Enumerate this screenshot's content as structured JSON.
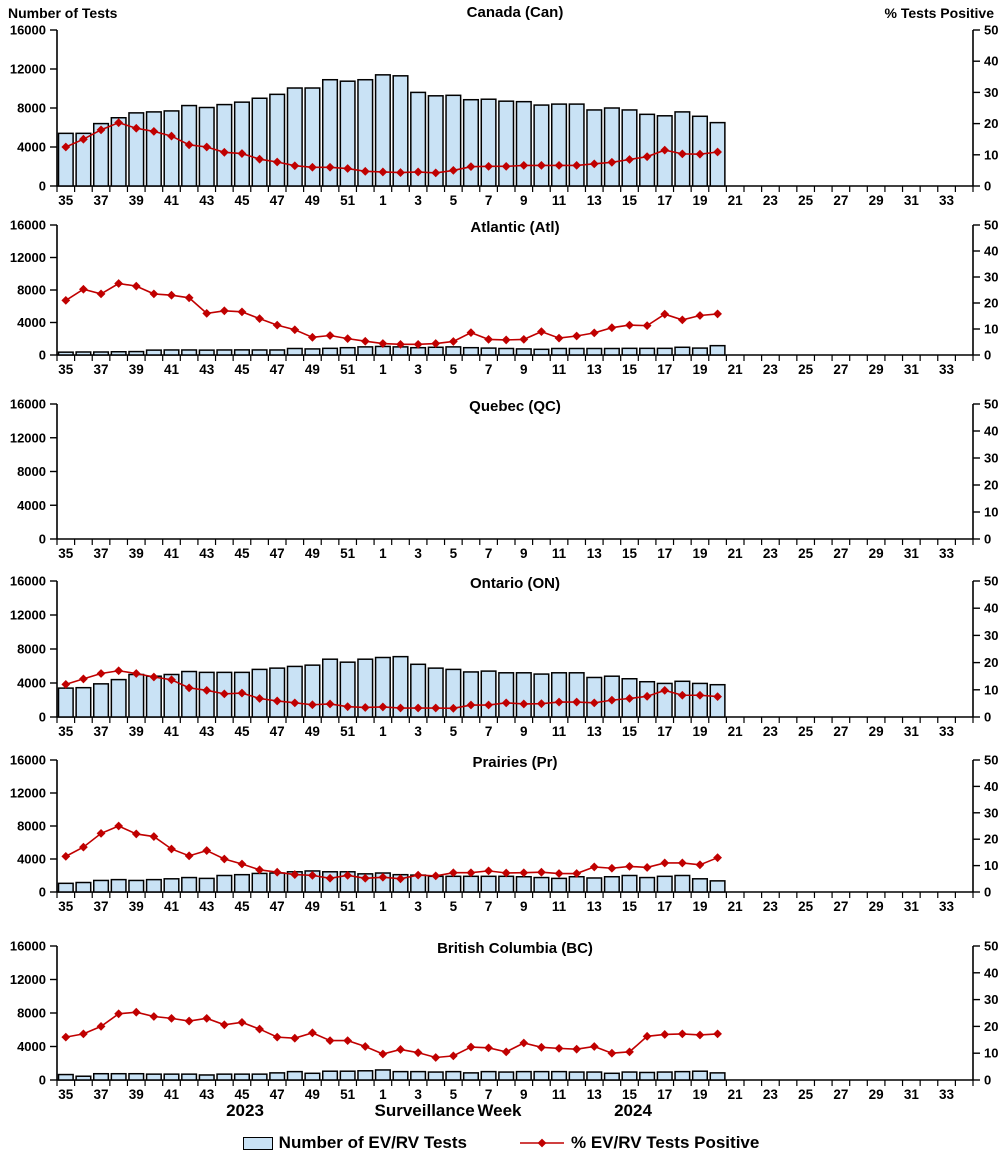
{
  "header": {
    "left_axis_label": "Number of Tests",
    "right_axis_label": "% Tests Positive"
  },
  "footer": {
    "year_left": "2023",
    "x_axis_label": "Surveillance Week",
    "year_right": "2024"
  },
  "legend": {
    "bar_label": "Number of EV/RV Tests",
    "line_label": "% EV/RV Tests Positive"
  },
  "colors": {
    "bar_fill": "#C9E2F5",
    "bar_stroke": "#000000",
    "line": "#C00000",
    "axis": "#000000"
  },
  "x_axis": {
    "weeks": [
      35,
      36,
      37,
      38,
      39,
      40,
      41,
      42,
      43,
      44,
      45,
      46,
      47,
      48,
      49,
      50,
      51,
      52,
      1,
      2,
      3,
      4,
      5,
      6,
      7,
      8,
      9,
      10,
      11,
      12,
      13,
      14,
      15,
      16,
      17,
      18,
      19,
      20,
      21,
      22,
      23,
      24,
      25,
      26,
      27,
      28,
      29,
      30,
      31,
      32,
      33,
      34
    ],
    "labeled_weeks": [
      35,
      37,
      39,
      41,
      43,
      45,
      47,
      49,
      51,
      1,
      3,
      5,
      7,
      9,
      11,
      13,
      15,
      17,
      19,
      21,
      23,
      25,
      27,
      29,
      31,
      33
    ]
  },
  "chart_data": [
    {
      "type": "bar+line",
      "title": "Canada (Can)",
      "left_axis": {
        "label": "Number of Tests",
        "min": 0,
        "max": 16000,
        "ticks": [
          0,
          4000,
          8000,
          12000,
          16000
        ]
      },
      "right_axis": {
        "label": "% Tests Positive",
        "min": 0,
        "max": 50,
        "ticks": [
          0,
          10,
          20,
          30,
          40,
          50
        ]
      },
      "bar_series": {
        "name": "Number of EV/RV Tests",
        "values": [
          5400,
          5400,
          6400,
          7000,
          7500,
          7600,
          7700,
          8250,
          8050,
          8350,
          8600,
          9000,
          9400,
          10050,
          10050,
          10900,
          10750,
          10900,
          11400,
          11300,
          9600,
          9250,
          9300,
          8850,
          8900,
          8700,
          8650,
          8300,
          8400,
          8400,
          7800,
          8000,
          7800,
          7350,
          7200,
          7600,
          7150,
          6500
        ]
      },
      "line_series": {
        "name": "% EV/RV Tests Positive",
        "values": [
          12.5,
          15,
          18,
          20.3,
          18.5,
          17.5,
          16,
          13.2,
          12.5,
          10.8,
          10.4,
          8.6,
          7.7,
          6.5,
          6,
          6,
          5.6,
          4.7,
          4.5,
          4.3,
          4.5,
          4.2,
          5,
          6.2,
          6.3,
          6.3,
          6.6,
          6.6,
          6.6,
          6.6,
          7.1,
          7.6,
          8.5,
          9.4,
          11.5,
          10.3,
          10.2,
          10.9
        ]
      }
    },
    {
      "type": "bar+line",
      "title": "Atlantic (Atl)",
      "left_axis": {
        "label": "Number of Tests",
        "min": 0,
        "max": 16000,
        "ticks": [
          0,
          4000,
          8000,
          12000,
          16000
        ]
      },
      "right_axis": {
        "label": "% Tests Positive",
        "min": 0,
        "max": 50,
        "ticks": [
          0,
          10,
          20,
          30,
          40,
          50
        ]
      },
      "bar_series": {
        "name": "Number of EV/RV Tests",
        "values": [
          350,
          370,
          370,
          400,
          420,
          600,
          620,
          620,
          600,
          620,
          630,
          620,
          620,
          800,
          750,
          820,
          900,
          1000,
          1050,
          1000,
          900,
          950,
          1000,
          900,
          850,
          800,
          750,
          700,
          800,
          800,
          800,
          800,
          820,
          820,
          820,
          950,
          850,
          1150
        ]
      },
      "line_series": {
        "name": "% EV/RV Tests Positive",
        "values": [
          21,
          25.3,
          23.5,
          27.5,
          26.5,
          23.5,
          23,
          22,
          16,
          17,
          16.6,
          14,
          11.5,
          9.7,
          6.8,
          7.5,
          6.3,
          5.3,
          4.4,
          4.1,
          4.1,
          4.4,
          5.2,
          8.6,
          6,
          5.8,
          6,
          9,
          6.5,
          7.3,
          8.5,
          10.5,
          11.5,
          11.3,
          15.7,
          13.5,
          15.2,
          15.8
        ]
      }
    },
    {
      "type": "bar+line",
      "title": "Quebec (QC)",
      "left_axis": {
        "label": "Number of Tests",
        "min": 0,
        "max": 16000,
        "ticks": [
          0,
          4000,
          8000,
          12000,
          16000
        ]
      },
      "right_axis": {
        "label": "% Tests Positive",
        "min": 0,
        "max": 50,
        "ticks": [
          0,
          10,
          20,
          30,
          40,
          50
        ]
      },
      "bar_series": {
        "name": "Number of EV/RV Tests",
        "values": []
      },
      "line_series": {
        "name": "% EV/RV Tests Positive",
        "values": []
      }
    },
    {
      "type": "bar+line",
      "title": "Ontario (ON)",
      "left_axis": {
        "label": "Number of Tests",
        "min": 0,
        "max": 16000,
        "ticks": [
          0,
          4000,
          8000,
          12000,
          16000
        ]
      },
      "right_axis": {
        "label": "% Tests Positive",
        "min": 0,
        "max": 50,
        "ticks": [
          0,
          10,
          20,
          30,
          40,
          50
        ]
      },
      "bar_series": {
        "name": "Number of EV/RV Tests",
        "values": [
          3400,
          3450,
          3900,
          4400,
          5000,
          4800,
          5000,
          5350,
          5250,
          5250,
          5250,
          5600,
          5750,
          5950,
          6100,
          6800,
          6450,
          6800,
          7000,
          7100,
          6200,
          5750,
          5600,
          5300,
          5400,
          5200,
          5200,
          5050,
          5200,
          5200,
          4650,
          4800,
          4500,
          4150,
          3950,
          4200,
          3950,
          3800
        ]
      },
      "line_series": {
        "name": "% EV/RV Tests Positive",
        "values": [
          12,
          14,
          16,
          17,
          16,
          14.7,
          13.7,
          10.7,
          9.8,
          8.5,
          8.8,
          6.8,
          5.9,
          5.2,
          4.5,
          4.8,
          3.8,
          3.5,
          3.7,
          3.3,
          3.3,
          3.3,
          3.2,
          4.4,
          4.4,
          5.2,
          4.8,
          4.9,
          5.5,
          5.5,
          5.2,
          6.2,
          6.8,
          7.6,
          9.8,
          8,
          8,
          7.5
        ]
      }
    },
    {
      "type": "bar+line",
      "title": "Prairies (Pr)",
      "left_axis": {
        "label": "Number of Tests",
        "min": 0,
        "max": 16000,
        "ticks": [
          0,
          4000,
          8000,
          12000,
          16000
        ]
      },
      "right_axis": {
        "label": "% Tests Positive",
        "min": 0,
        "max": 50,
        "ticks": [
          0,
          10,
          20,
          30,
          40,
          50
        ]
      },
      "bar_series": {
        "name": "Number of EV/RV Tests",
        "values": [
          1050,
          1150,
          1400,
          1500,
          1400,
          1500,
          1600,
          1750,
          1650,
          2000,
          2100,
          2250,
          2300,
          2450,
          2550,
          2450,
          2450,
          2200,
          2300,
          2100,
          2050,
          1900,
          1900,
          1900,
          1900,
          1900,
          1850,
          1750,
          1650,
          1850,
          1700,
          1850,
          2000,
          1750,
          1900,
          2000,
          1600,
          1350
        ]
      },
      "line_series": {
        "name": "% EV/RV Tests Positive",
        "values": [
          13.5,
          17,
          22.2,
          25,
          22,
          21,
          16.3,
          13.7,
          15.7,
          12.5,
          10.6,
          8.4,
          7.5,
          6.6,
          6.3,
          5.2,
          6.3,
          5.2,
          5.6,
          5,
          6.4,
          6.1,
          7.3,
          7.3,
          8,
          7.2,
          7.3,
          7.5,
          7,
          7,
          9.5,
          9,
          9.7,
          9.3,
          11,
          11,
          10.3,
          13
        ]
      }
    },
    {
      "type": "bar+line",
      "title": "British Columbia (BC)",
      "left_axis": {
        "label": "Number of Tests",
        "min": 0,
        "max": 16000,
        "ticks": [
          0,
          4000,
          8000,
          12000,
          16000
        ]
      },
      "right_axis": {
        "label": "% Tests Positive",
        "min": 0,
        "max": 50,
        "ticks": [
          0,
          10,
          20,
          30,
          40,
          50
        ]
      },
      "bar_series": {
        "name": "Number of EV/RV Tests",
        "values": [
          650,
          450,
          750,
          750,
          750,
          700,
          700,
          700,
          600,
          700,
          700,
          700,
          850,
          1000,
          800,
          1050,
          1050,
          1100,
          1200,
          1000,
          1000,
          950,
          1000,
          850,
          1000,
          950,
          1000,
          1000,
          1000,
          950,
          950,
          800,
          950,
          900,
          950,
          1000,
          1050,
          850
        ]
      },
      "line_series": {
        "name": "% EV/RV Tests Positive",
        "values": [
          16,
          17.2,
          20,
          24.7,
          25.3,
          23.7,
          23,
          22,
          23,
          20.6,
          21.5,
          19,
          16,
          15.6,
          17.6,
          14.7,
          14.7,
          12.5,
          9.7,
          11.4,
          10.2,
          8.4,
          9,
          12.3,
          12,
          10.5,
          13.8,
          12.2,
          11.8,
          11.5,
          12.5,
          10,
          10.5,
          16.3,
          17,
          17.2,
          16.8,
          17.2
        ]
      }
    }
  ]
}
